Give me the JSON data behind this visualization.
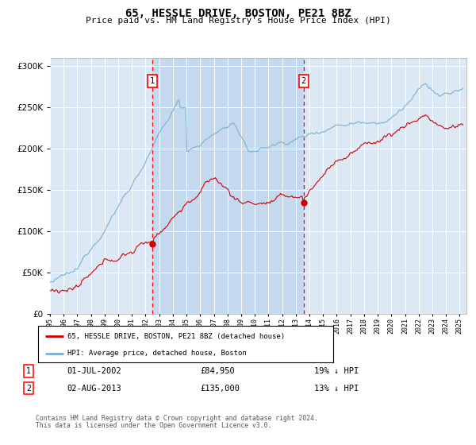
{
  "title": "65, HESSLE DRIVE, BOSTON, PE21 8BZ",
  "subtitle": "Price paid vs. HM Land Registry's House Price Index (HPI)",
  "plot_bg_color": "#dce9f5",
  "shaded_bg_color": "#c5d9ee",
  "hpi_color": "#7ab0d4",
  "price_color": "#cc0000",
  "annotation1_date": "01-JUL-2002",
  "annotation1_price": 84950,
  "annotation1_hpi_diff": "19% ↓ HPI",
  "annotation1_year": 2002.5,
  "annotation2_date": "02-AUG-2013",
  "annotation2_price": 135000,
  "annotation2_hpi_diff": "13% ↓ HPI",
  "annotation2_year": 2013.58,
  "legend_label1": "65, HESSLE DRIVE, BOSTON, PE21 8BZ (detached house)",
  "legend_label2": "HPI: Average price, detached house, Boston",
  "footer1": "Contains HM Land Registry data © Crown copyright and database right 2024.",
  "footer2": "This data is licensed under the Open Government Licence v3.0.",
  "ylim": [
    0,
    310000
  ],
  "xlim_start": 1995.0,
  "xlim_end": 2025.5
}
